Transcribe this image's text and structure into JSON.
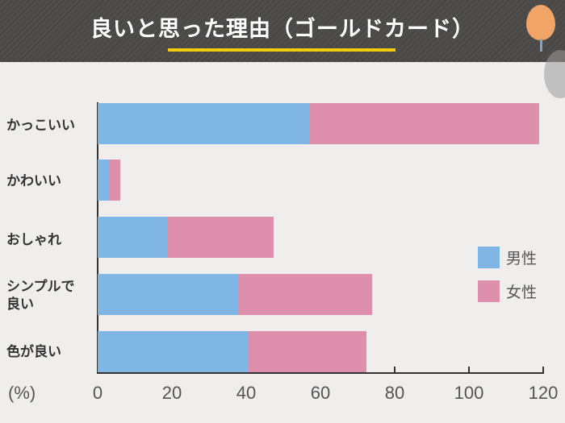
{
  "header": {
    "title": "良いと思った理由（ゴールドカード）",
    "accent_underline_color": "#f2cc0c"
  },
  "legend": {
    "male": {
      "label": "男性",
      "color": "#80b6e4"
    },
    "female": {
      "label": "女性",
      "color": "#dd8fab"
    }
  },
  "axis": {
    "unit": "(%)",
    "ticks": [
      "0",
      "20",
      "40",
      "60",
      "80",
      "100",
      "120"
    ]
  },
  "categories": [
    {
      "label": "かっこいい"
    },
    {
      "label": "かわいい"
    },
    {
      "label": "おしゃれ"
    },
    {
      "label_line1": "シンプルで",
      "label_line2": "良い"
    },
    {
      "label": "色が良い"
    }
  ],
  "chart_data": {
    "type": "bar",
    "orientation": "horizontal",
    "stacked": true,
    "title": "良いと思った理由（ゴールドカード）",
    "xlabel": "(%)",
    "ylabel": "",
    "xlim": [
      0,
      120
    ],
    "x_ticks": [
      0,
      20,
      40,
      60,
      80,
      100,
      120
    ],
    "categories": [
      "かっこいい",
      "かわいい",
      "おしゃれ",
      "シンプルで良い",
      "色が良い"
    ],
    "series": [
      {
        "name": "男性",
        "color": "#80b6e4",
        "values": [
          57,
          3,
          19,
          38,
          40.5
        ]
      },
      {
        "name": "女性",
        "color": "#dd8fab",
        "values": [
          62,
          3,
          28.5,
          36,
          32
        ]
      }
    ],
    "legend_position": "right",
    "grid": false
  }
}
